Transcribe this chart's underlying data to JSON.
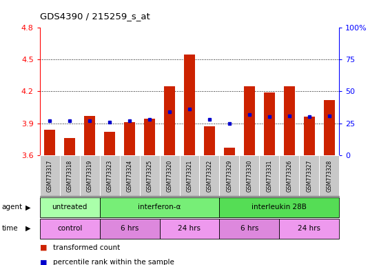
{
  "title": "GDS4390 / 215259_s_at",
  "samples": [
    "GSM773317",
    "GSM773318",
    "GSM773319",
    "GSM773323",
    "GSM773324",
    "GSM773325",
    "GSM773320",
    "GSM773321",
    "GSM773322",
    "GSM773329",
    "GSM773330",
    "GSM773331",
    "GSM773326",
    "GSM773327",
    "GSM773328"
  ],
  "red_values": [
    3.84,
    3.76,
    3.97,
    3.82,
    3.91,
    3.94,
    4.25,
    4.55,
    3.87,
    3.67,
    4.25,
    4.19,
    4.25,
    3.96,
    4.12
  ],
  "blue_pct": [
    27,
    27,
    27,
    26,
    27,
    28,
    34,
    36,
    28,
    25,
    32,
    30,
    31,
    30,
    31
  ],
  "ymin": 3.6,
  "ymax": 4.8,
  "y_ticks": [
    3.6,
    3.9,
    4.2,
    4.5,
    4.8
  ],
  "y2min": 0,
  "y2max": 100,
  "y2_ticks": [
    0,
    25,
    50,
    75,
    100
  ],
  "y2_labels": [
    "0",
    "25",
    "50",
    "75",
    "100%"
  ],
  "agent_groups": [
    {
      "label": "untreated",
      "start": 0,
      "end": 3,
      "color": "#aaffaa"
    },
    {
      "label": "interferon-α",
      "start": 3,
      "end": 9,
      "color": "#77ee77"
    },
    {
      "label": "interleukin 28B",
      "start": 9,
      "end": 15,
      "color": "#55dd55"
    }
  ],
  "time_groups": [
    {
      "label": "control",
      "start": 0,
      "end": 3,
      "color": "#ee99ee"
    },
    {
      "label": "6 hrs",
      "start": 3,
      "end": 6,
      "color": "#dd88dd"
    },
    {
      "label": "24 hrs",
      "start": 6,
      "end": 9,
      "color": "#ee99ee"
    },
    {
      "label": "6 hrs",
      "start": 9,
      "end": 12,
      "color": "#dd88dd"
    },
    {
      "label": "24 hrs",
      "start": 12,
      "end": 15,
      "color": "#ee99ee"
    }
  ],
  "bar_color": "#cc2200",
  "dot_color": "#0000cc",
  "bar_width": 0.55,
  "legend": [
    "transformed count",
    "percentile rank within the sample"
  ],
  "tick_area_color": "#c8c8c8",
  "cell_border_color": "#ffffff"
}
